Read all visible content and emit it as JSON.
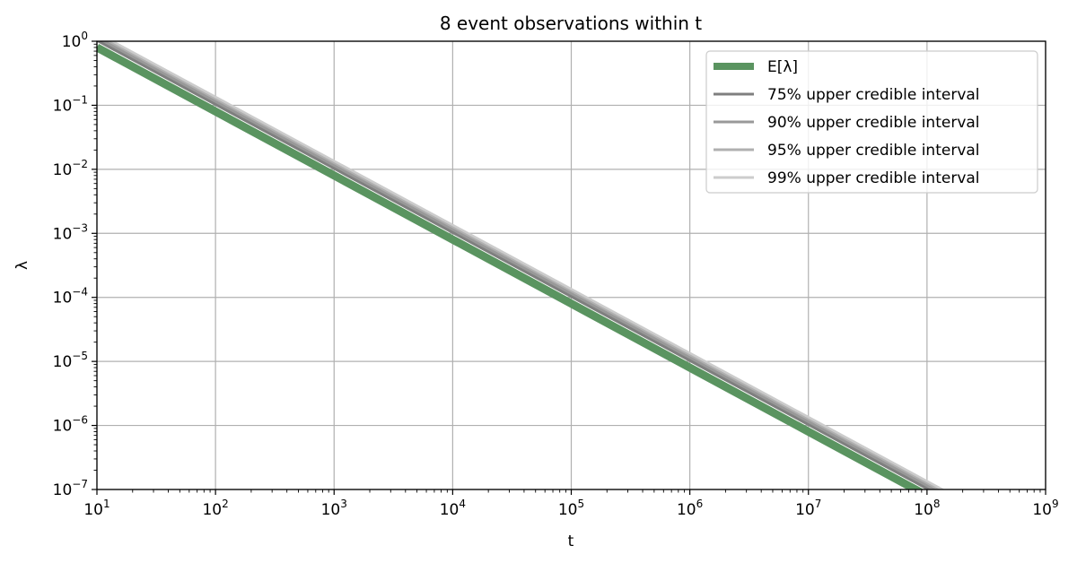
{
  "chart_data": {
    "type": "line",
    "title": "8 event observations within t",
    "xlabel": "t",
    "ylabel": "λ",
    "xscale": "log",
    "yscale": "log",
    "xlim": [
      10,
      1000000000
    ],
    "ylim": [
      1e-07,
      1
    ],
    "grid": true,
    "legend_position": "top-right",
    "x_ticks": [
      {
        "base": "10",
        "exp": "1"
      },
      {
        "base": "10",
        "exp": "2"
      },
      {
        "base": "10",
        "exp": "3"
      },
      {
        "base": "10",
        "exp": "4"
      },
      {
        "base": "10",
        "exp": "5"
      },
      {
        "base": "10",
        "exp": "6"
      },
      {
        "base": "10",
        "exp": "7"
      },
      {
        "base": "10",
        "exp": "8"
      },
      {
        "base": "10",
        "exp": "9"
      }
    ],
    "y_ticks": [
      {
        "base": "10",
        "exp": "0"
      },
      {
        "base": "10",
        "exp": "−1"
      },
      {
        "base": "10",
        "exp": "−2"
      },
      {
        "base": "10",
        "exp": "−3"
      },
      {
        "base": "10",
        "exp": "−4"
      },
      {
        "base": "10",
        "exp": "−5"
      },
      {
        "base": "10",
        "exp": "−6"
      },
      {
        "base": "10",
        "exp": "−7"
      }
    ],
    "series": [
      {
        "name": "99% upper credible interval",
        "color": "#cccccc",
        "x": [
          10,
          1000000000
        ],
        "y": [
          1.34,
          1.34e-08
        ]
      },
      {
        "name": "95% upper credible interval",
        "color": "#b0b0b0",
        "x": [
          10,
          1000000000
        ],
        "y": [
          1.22,
          1.22e-08
        ]
      },
      {
        "name": "90% upper credible interval",
        "color": "#999999",
        "x": [
          10,
          1000000000
        ],
        "y": [
          1.14,
          1.14e-08
        ]
      },
      {
        "name": "75% upper credible interval",
        "color": "#7f7f7f",
        "x": [
          10,
          1000000000
        ],
        "y": [
          1.03,
          1.03e-08
        ]
      },
      {
        "name": "E[λ]",
        "color": "#5a9460",
        "x": [
          10,
          1000000000
        ],
        "y": [
          0.8,
          8e-09
        ]
      }
    ],
    "legend_order": [
      "E[λ]",
      "75% upper credible interval",
      "90% upper credible interval",
      "95% upper credible interval",
      "99% upper credible interval"
    ]
  }
}
